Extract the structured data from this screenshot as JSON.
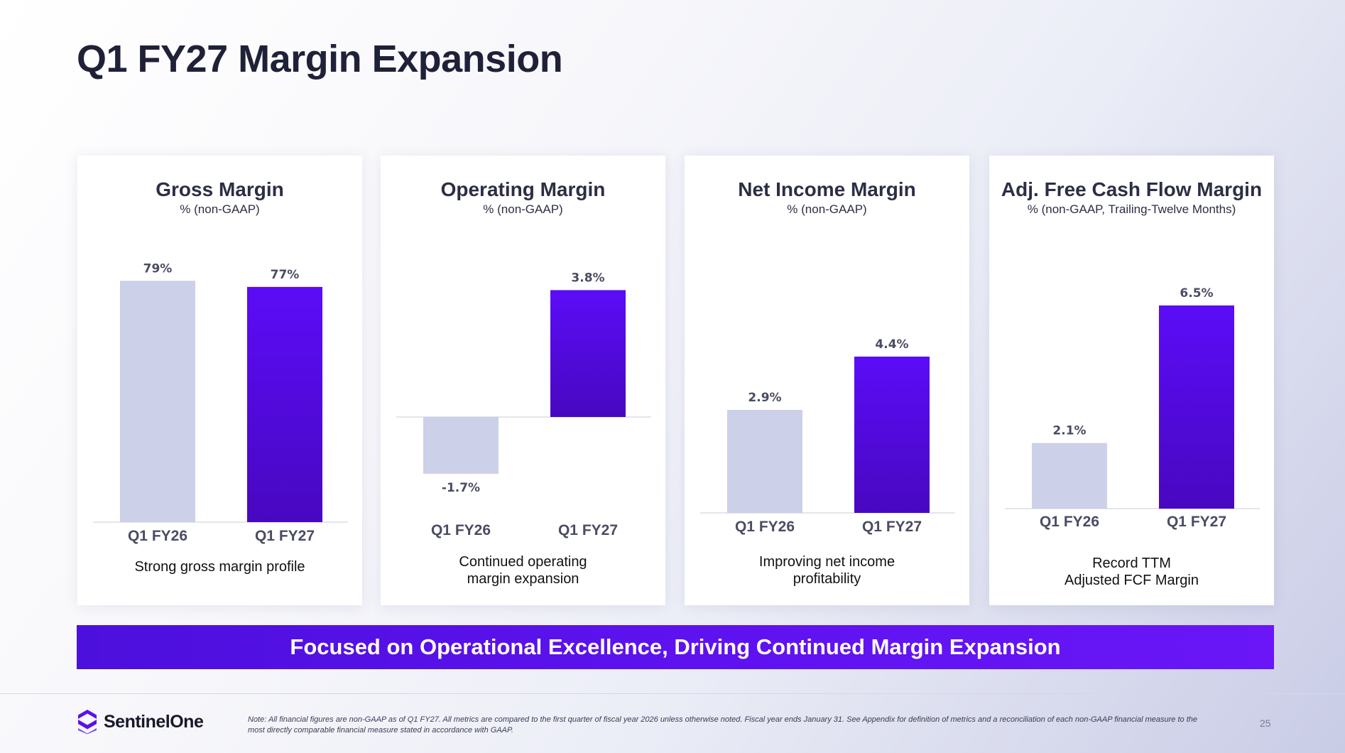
{
  "slide": {
    "title": "Q1 FY27 Margin Expansion",
    "banner": "Focused on Operational Excellence, Driving Continued Margin Expansion",
    "logo_text": "SentinelOne",
    "note": "Note: All financial figures are non-GAAP as of Q1 FY27. All metrics are compared to the first quarter of fiscal year 2026 unless otherwise noted. Fiscal year ends January 31. See Appendix for definition of metrics and a reconciliation of each non-GAAP financial measure to the most directly comparable financial measure stated in accordance with GAAP.",
    "page_number": "25"
  },
  "colors": {
    "prior_bar": "#ccd0e8",
    "current_bar_top": "#5b0cf7",
    "current_bar_bottom": "#4808c0",
    "label": "#4a4c62",
    "baseline": "#dcdde6",
    "banner": "#5d12ee",
    "logo": "#5a12e8"
  },
  "chart_data": [
    {
      "type": "bar",
      "title": "Gross Margin",
      "subtitle": "% (non-GAAP)",
      "categories": [
        "Q1 FY26",
        "Q1 FY27"
      ],
      "values": [
        79,
        77
      ],
      "data_labels": [
        "79%",
        "77%"
      ],
      "caption": "Strong gross margin profile"
    },
    {
      "type": "bar",
      "title": "Operating Margin",
      "subtitle": "% (non-GAAP)",
      "categories": [
        "Q1 FY26",
        "Q1 FY27"
      ],
      "values": [
        -1.7,
        3.8
      ],
      "data_labels": [
        "-1.7%",
        "3.8%"
      ],
      "caption": "Continued operating\nmargin expansion"
    },
    {
      "type": "bar",
      "title": "Net Income Margin",
      "subtitle": "% (non-GAAP)",
      "categories": [
        "Q1 FY26",
        "Q1 FY27"
      ],
      "values": [
        2.9,
        4.4
      ],
      "data_labels": [
        "2.9%",
        "4.4%"
      ],
      "caption": "Improving net income\nprofitability"
    },
    {
      "type": "bar",
      "title": "Adj. Free Cash Flow Margin",
      "subtitle": "% (non-GAAP, Trailing-Twelve Months)",
      "categories": [
        "Q1 FY26",
        "Q1 FY27"
      ],
      "values": [
        2.1,
        6.5
      ],
      "data_labels": [
        "2.1%",
        "6.5%"
      ],
      "caption": "Record TTM\nAdjusted FCF Margin"
    }
  ]
}
